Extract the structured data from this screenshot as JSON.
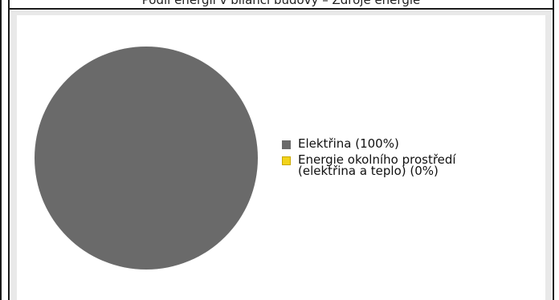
{
  "header": {
    "title": "Podíl energií v bilanci budovy – Zdroje energie"
  },
  "chart_data": {
    "type": "pie",
    "title": "",
    "series": [
      {
        "values": [
          100,
          0
        ]
      }
    ],
    "categories": [
      "Elektřina",
      "Energie okolního prostředí (elektřina a teplo)"
    ],
    "labels": [
      "Elektřina (100%)",
      "Energie okolního prostředí (elektřina a teplo) (0%)"
    ],
    "colors": [
      "#6a6a6a",
      "#f2d31b"
    ],
    "legend": "right"
  },
  "legend": {
    "items": [
      {
        "line1": "Elektřina (100%)",
        "line2": "",
        "color": "#6a6a6a"
      },
      {
        "line1": "Energie okolního prostředí",
        "line2": "(elektřina a teplo) (0%)",
        "color": "#f2d31b"
      }
    ]
  }
}
